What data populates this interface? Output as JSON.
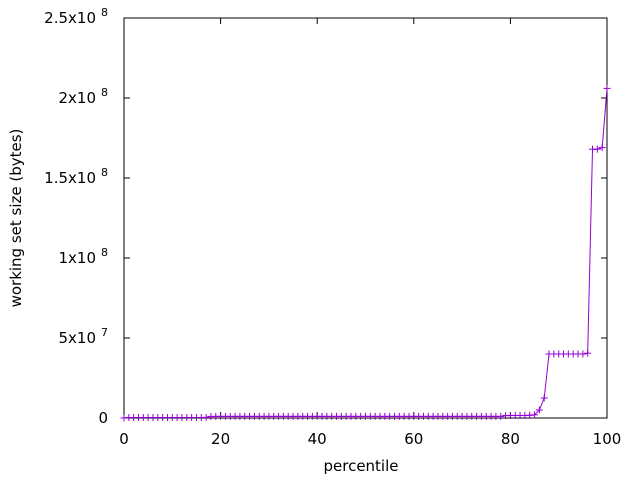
{
  "chart_data": {
    "type": "line",
    "xlabel": "percentile",
    "ylabel": "working set size (bytes)",
    "xlim": [
      0,
      100
    ],
    "ylim": [
      0,
      250000000
    ],
    "x_ticks": [
      {
        "value": 0,
        "label": "0"
      },
      {
        "value": 20,
        "label": "20"
      },
      {
        "value": 40,
        "label": "40"
      },
      {
        "value": 60,
        "label": "60"
      },
      {
        "value": 80,
        "label": "80"
      },
      {
        "value": 100,
        "label": "100"
      }
    ],
    "y_ticks": [
      {
        "value": 0,
        "mantissa": "0",
        "exponent": ""
      },
      {
        "value": 50000000,
        "mantissa": "5x10",
        "exponent": "7"
      },
      {
        "value": 100000000,
        "mantissa": "1x10",
        "exponent": "8"
      },
      {
        "value": 150000000,
        "mantissa": "1.5x10",
        "exponent": "8"
      },
      {
        "value": 200000000,
        "mantissa": "2x10",
        "exponent": "8"
      },
      {
        "value": 250000000,
        "mantissa": "2.5x10",
        "exponent": "8"
      }
    ],
    "grid": false,
    "line_color": "#9400d3",
    "marker": "plus",
    "series": [
      {
        "x": [
          0,
          1,
          2,
          3,
          4,
          5,
          6,
          7,
          8,
          9,
          10,
          11,
          12,
          13,
          14,
          15,
          16,
          17,
          18,
          19,
          20,
          21,
          22,
          23,
          24,
          25,
          26,
          27,
          28,
          29,
          30,
          31,
          32,
          33,
          34,
          35,
          36,
          37,
          38,
          39,
          40,
          41,
          42,
          43,
          44,
          45,
          46,
          47,
          48,
          49,
          50,
          51,
          52,
          53,
          54,
          55,
          56,
          57,
          58,
          59,
          60,
          61,
          62,
          63,
          64,
          65,
          66,
          67,
          68,
          69,
          70,
          71,
          72,
          73,
          74,
          75,
          76,
          77,
          78,
          79,
          80,
          81,
          82,
          83,
          84,
          85,
          86,
          87,
          88,
          89,
          90,
          91,
          92,
          93,
          94,
          95,
          96,
          97,
          98,
          99,
          100
        ],
        "y": [
          0,
          300000,
          300000,
          300000,
          300000,
          300000,
          300000,
          300000,
          300000,
          300000,
          300000,
          300000,
          300000,
          300000,
          300000,
          300000,
          300000,
          400000,
          900000,
          1000000,
          1000000,
          1000000,
          1000000,
          1000000,
          1000000,
          1000000,
          1000000,
          1000000,
          1000000,
          1000000,
          1000000,
          1000000,
          1000000,
          1000000,
          1000000,
          1000000,
          1000000,
          1000000,
          1000000,
          1000000,
          1000000,
          1000000,
          1000000,
          1000000,
          1000000,
          1000000,
          1000000,
          1000000,
          1000000,
          1000000,
          1000000,
          1000000,
          1000000,
          1000000,
          1000000,
          1000000,
          1000000,
          1000000,
          1000000,
          1000000,
          1000000,
          1000000,
          1000000,
          1000000,
          1000000,
          1000000,
          1000000,
          1000000,
          1000000,
          1000000,
          1000000,
          1000000,
          1000000,
          1000000,
          1000000,
          1000000,
          1000000,
          1000000,
          1000000,
          1500000,
          1600000,
          1600000,
          1600000,
          1600000,
          1700000,
          2000000,
          5000000,
          12500000,
          40000000,
          40000000,
          40000000,
          40000000,
          40000000,
          40000000,
          40000000,
          40000000,
          40500000,
          168000000,
          168000000,
          169000000,
          206000000
        ]
      }
    ]
  }
}
